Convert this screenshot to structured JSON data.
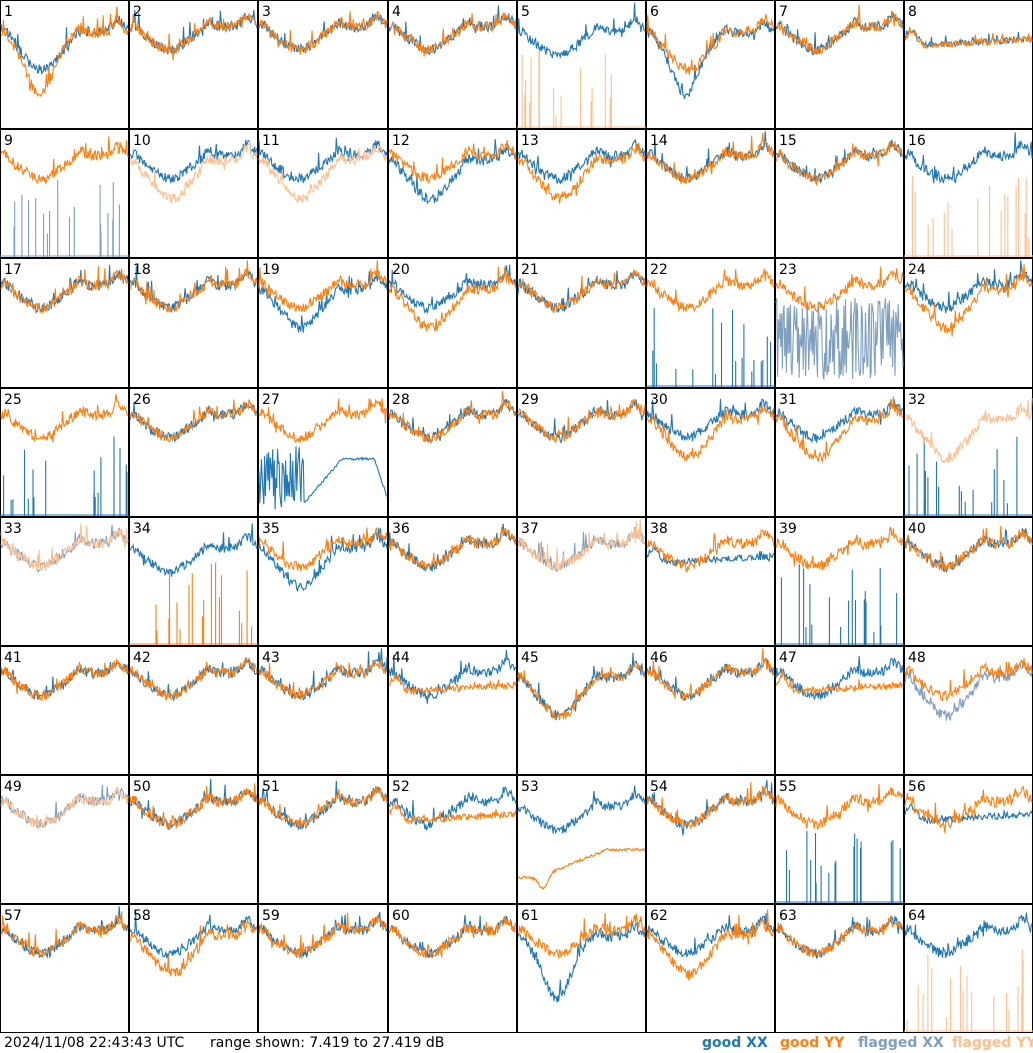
{
  "colors": {
    "good_xx": "#1f77b4",
    "good_yy": "#ff7f0e",
    "flagged_xx": "#7f9fbf",
    "flagged_yy": "#ffbf8f"
  },
  "footer": {
    "timestamp": "2024/11/08 22:43:43 UTC",
    "range_text": "range shown: 7.419 to 27.419 dB"
  },
  "legend": {
    "good_xx": "good XX",
    "good_yy": "good YY",
    "flagged_xx": "flagged XX",
    "flagged_yy": "flagged YY"
  },
  "chart_data": {
    "type": "line",
    "description_units": "dB",
    "ylim": [
      7.419,
      27.419
    ],
    "grid": {
      "rows": 8,
      "cols": 8
    },
    "x_ticks": "none",
    "panel_labels": [
      "1",
      "2",
      "3",
      "4",
      "5",
      "6",
      "7",
      "8",
      "9",
      "10",
      "11",
      "12",
      "13",
      "14",
      "15",
      "16",
      "17",
      "18",
      "19",
      "20",
      "21",
      "22",
      "23",
      "24",
      "25",
      "26",
      "27",
      "28",
      "29",
      "30",
      "31",
      "32",
      "33",
      "34",
      "35",
      "36",
      "37",
      "38",
      "39",
      "40",
      "41",
      "42",
      "43",
      "44",
      "45",
      "46",
      "47",
      "48",
      "49",
      "50",
      "51",
      "52",
      "53",
      "54",
      "55",
      "56",
      "57",
      "58",
      "59",
      "60",
      "61",
      "62",
      "63",
      "64"
    ],
    "panels": [
      {
        "id": 1,
        "xx": "good",
        "yy": "good",
        "xx_shape": "low_hump",
        "yy_shape": "deep_dip"
      },
      {
        "id": 2,
        "xx": "good",
        "yy": "good",
        "xx_shape": "normal",
        "yy_shape": "normal"
      },
      {
        "id": 3,
        "xx": "good",
        "yy": "good",
        "xx_shape": "normal",
        "yy_shape": "normal"
      },
      {
        "id": 4,
        "xx": "good",
        "yy": "good",
        "xx_shape": "normal",
        "yy_shape": "normal"
      },
      {
        "id": 5,
        "xx": "good",
        "yy": "flagged",
        "xx_shape": "hump",
        "yy_shape": "spikes"
      },
      {
        "id": 6,
        "xx": "good",
        "yy": "good",
        "xx_shape": "deep_dip",
        "yy_shape": "low_hump"
      },
      {
        "id": 7,
        "xx": "good",
        "yy": "good",
        "xx_shape": "normal",
        "yy_shape": "normal"
      },
      {
        "id": 8,
        "xx": "good",
        "yy": "good",
        "xx_shape": "flat",
        "yy_shape": "flat"
      },
      {
        "id": 9,
        "xx": "flagged",
        "yy": "good",
        "xx_shape": "spikes",
        "yy_shape": "normal"
      },
      {
        "id": 10,
        "xx": "good",
        "yy": "flagged",
        "xx_shape": "normal",
        "yy_shape": "low_hump"
      },
      {
        "id": 11,
        "xx": "good",
        "yy": "flagged",
        "xx_shape": "normal",
        "yy_shape": "low_hump"
      },
      {
        "id": 12,
        "xx": "good",
        "yy": "good",
        "xx_shape": "low_hump",
        "yy_shape": "normal"
      },
      {
        "id": 13,
        "xx": "good",
        "yy": "good",
        "xx_shape": "normal",
        "yy_shape": "low_hump"
      },
      {
        "id": 14,
        "xx": "good",
        "yy": "good",
        "xx_shape": "normal",
        "yy_shape": "normal"
      },
      {
        "id": 15,
        "xx": "good",
        "yy": "good",
        "xx_shape": "normal",
        "yy_shape": "normal"
      },
      {
        "id": 16,
        "xx": "good",
        "yy": "flagged",
        "xx_shape": "normal",
        "yy_shape": "spikes"
      },
      {
        "id": 17,
        "xx": "good",
        "yy": "good",
        "xx_shape": "normal",
        "yy_shape": "normal"
      },
      {
        "id": 18,
        "xx": "good",
        "yy": "good",
        "xx_shape": "normal",
        "yy_shape": "normal"
      },
      {
        "id": 19,
        "xx": "good",
        "yy": "good",
        "xx_shape": "low_hump",
        "yy_shape": "normal"
      },
      {
        "id": 20,
        "xx": "good",
        "yy": "good",
        "xx_shape": "normal",
        "yy_shape": "low_hump"
      },
      {
        "id": 21,
        "xx": "good",
        "yy": "good",
        "xx_shape": "normal",
        "yy_shape": "normal"
      },
      {
        "id": 22,
        "xx": "good",
        "yy": "good",
        "xx_shape": "spikes",
        "yy_shape": "normal"
      },
      {
        "id": 23,
        "xx": "flagged",
        "yy": "good",
        "xx_shape": "noisy",
        "yy_shape": "normal"
      },
      {
        "id": 24,
        "xx": "good",
        "yy": "good",
        "xx_shape": "normal",
        "yy_shape": "low_hump"
      },
      {
        "id": 25,
        "xx": "good",
        "yy": "good",
        "xx_shape": "spikes",
        "yy_shape": "normal"
      },
      {
        "id": 26,
        "xx": "good",
        "yy": "good",
        "xx_shape": "normal",
        "yy_shape": "normal"
      },
      {
        "id": 27,
        "xx": "good",
        "yy": "good",
        "xx_shape": "decay",
        "yy_shape": "normal"
      },
      {
        "id": 28,
        "xx": "good",
        "yy": "good",
        "xx_shape": "normal",
        "yy_shape": "normal"
      },
      {
        "id": 29,
        "xx": "good",
        "yy": "good",
        "xx_shape": "normal",
        "yy_shape": "normal"
      },
      {
        "id": 30,
        "xx": "good",
        "yy": "good",
        "xx_shape": "normal",
        "yy_shape": "low_hump"
      },
      {
        "id": 31,
        "xx": "good",
        "yy": "good",
        "xx_shape": "normal",
        "yy_shape": "low_hump"
      },
      {
        "id": 32,
        "xx": "good",
        "yy": "flagged",
        "xx_shape": "spikes",
        "yy_shape": "low_hump"
      },
      {
        "id": 33,
        "xx": "flagged",
        "yy": "flagged",
        "xx_shape": "normal",
        "yy_shape": "normal"
      },
      {
        "id": 34,
        "xx": "good",
        "yy": "good",
        "xx_shape": "hump",
        "yy_shape": "spikes"
      },
      {
        "id": 35,
        "xx": "good",
        "yy": "good",
        "xx_shape": "low_hump",
        "yy_shape": "normal"
      },
      {
        "id": 36,
        "xx": "good",
        "yy": "good",
        "xx_shape": "normal",
        "yy_shape": "normal"
      },
      {
        "id": 37,
        "xx": "flagged",
        "yy": "flagged",
        "xx_shape": "normal",
        "yy_shape": "normal"
      },
      {
        "id": 38,
        "xx": "good",
        "yy": "good",
        "xx_shape": "flat",
        "yy_shape": "normal"
      },
      {
        "id": 39,
        "xx": "good",
        "yy": "good",
        "xx_shape": "spikes",
        "yy_shape": "normal"
      },
      {
        "id": 40,
        "xx": "good",
        "yy": "good",
        "xx_shape": "normal",
        "yy_shape": "normal"
      },
      {
        "id": 41,
        "xx": "good",
        "yy": "good",
        "xx_shape": "normal",
        "yy_shape": "normal"
      },
      {
        "id": 42,
        "xx": "good",
        "yy": "good",
        "xx_shape": "normal",
        "yy_shape": "normal"
      },
      {
        "id": 43,
        "xx": "good",
        "yy": "good",
        "xx_shape": "normal",
        "yy_shape": "normal"
      },
      {
        "id": 44,
        "xx": "good",
        "yy": "good",
        "xx_shape": "normal",
        "yy_shape": "flat"
      },
      {
        "id": 45,
        "xx": "good",
        "yy": "good",
        "xx_shape": "low_hump",
        "yy_shape": "low_hump"
      },
      {
        "id": 46,
        "xx": "good",
        "yy": "good",
        "xx_shape": "normal",
        "yy_shape": "normal"
      },
      {
        "id": 47,
        "xx": "good",
        "yy": "good",
        "xx_shape": "normal",
        "yy_shape": "flat"
      },
      {
        "id": 48,
        "xx": "flagged",
        "yy": "good",
        "xx_shape": "low_hump",
        "yy_shape": "normal"
      },
      {
        "id": 49,
        "xx": "flagged",
        "yy": "flagged",
        "xx_shape": "normal",
        "yy_shape": "normal"
      },
      {
        "id": 50,
        "xx": "good",
        "yy": "good",
        "xx_shape": "normal",
        "yy_shape": "normal"
      },
      {
        "id": 51,
        "xx": "good",
        "yy": "good",
        "xx_shape": "normal",
        "yy_shape": "normal"
      },
      {
        "id": 52,
        "xx": "good",
        "yy": "good",
        "xx_shape": "normal",
        "yy_shape": "flat"
      },
      {
        "id": 53,
        "xx": "good",
        "yy": "good",
        "xx_shape": "hump",
        "yy_shape": "dip_rise"
      },
      {
        "id": 54,
        "xx": "good",
        "yy": "good",
        "xx_shape": "normal",
        "yy_shape": "normal"
      },
      {
        "id": 55,
        "xx": "good",
        "yy": "good",
        "xx_shape": "spikes",
        "yy_shape": "normal"
      },
      {
        "id": 56,
        "xx": "good",
        "yy": "good",
        "xx_shape": "flat",
        "yy_shape": "normal"
      },
      {
        "id": 57,
        "xx": "good",
        "yy": "good",
        "xx_shape": "normal",
        "yy_shape": "normal"
      },
      {
        "id": 58,
        "xx": "good",
        "yy": "good",
        "xx_shape": "normal",
        "yy_shape": "low_hump"
      },
      {
        "id": 59,
        "xx": "good",
        "yy": "good",
        "xx_shape": "normal",
        "yy_shape": "normal"
      },
      {
        "id": 60,
        "xx": "good",
        "yy": "good",
        "xx_shape": "normal",
        "yy_shape": "normal"
      },
      {
        "id": 61,
        "xx": "good",
        "yy": "good",
        "xx_shape": "deep_dip",
        "yy_shape": "normal"
      },
      {
        "id": 62,
        "xx": "good",
        "yy": "good",
        "xx_shape": "normal",
        "yy_shape": "low_hump"
      },
      {
        "id": 63,
        "xx": "good",
        "yy": "good",
        "xx_shape": "normal",
        "yy_shape": "normal"
      },
      {
        "id": 64,
        "xx": "good",
        "yy": "flagged",
        "xx_shape": "normal",
        "yy_shape": "spikes"
      }
    ]
  }
}
